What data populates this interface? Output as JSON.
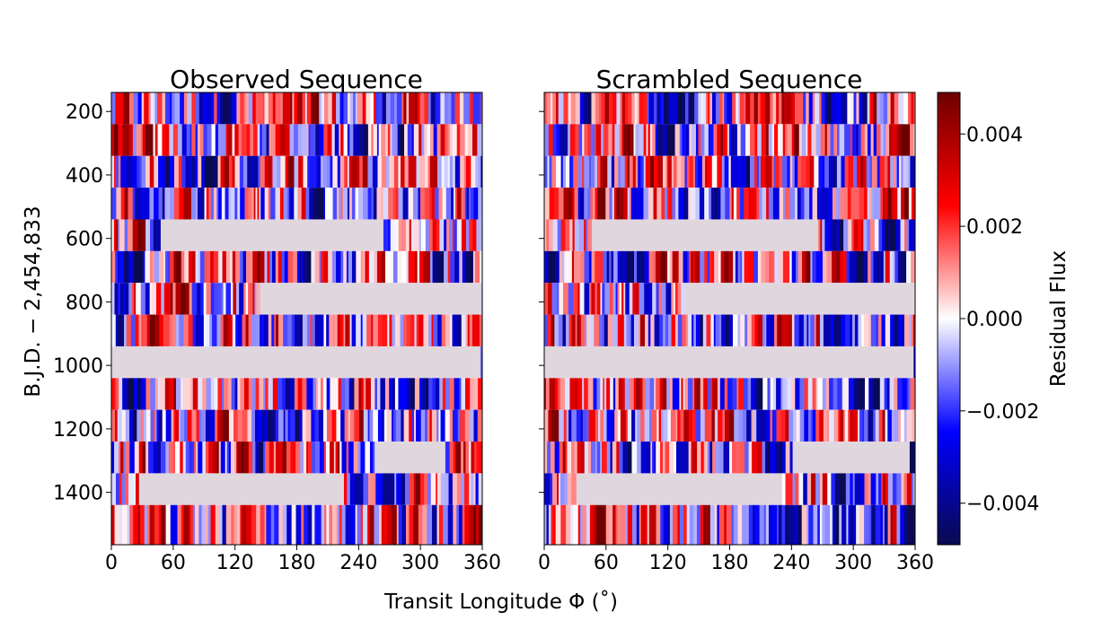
{
  "chart_data": [
    {
      "type": "heatmap",
      "title": "Observed Sequence",
      "xlabel": "Transit Longitude Φ (˚)",
      "ylabel": "B.J.D. − 2,454,833",
      "xlim": [
        0,
        360
      ],
      "ylim": [
        140,
        1565
      ],
      "xticks": [
        "0",
        "60",
        "120",
        "180",
        "240",
        "300",
        "360"
      ],
      "yticks": [
        "200",
        "400",
        "600",
        "800",
        "1000",
        "1200",
        "1400"
      ],
      "rows": [
        {
          "t0": 140,
          "t1": 240,
          "gaps": []
        },
        {
          "t0": 240,
          "t1": 340,
          "gaps": []
        },
        {
          "t0": 340,
          "t1": 440,
          "gaps": []
        },
        {
          "t0": 440,
          "t1": 540,
          "gaps": []
        },
        {
          "t0": 540,
          "t1": 640,
          "gaps": [
            [
              47,
              265
            ]
          ]
        },
        {
          "t0": 640,
          "t1": 740,
          "gaps": []
        },
        {
          "t0": 740,
          "t1": 840,
          "gaps": [
            [
              145,
              360
            ]
          ]
        },
        {
          "t0": 840,
          "t1": 940,
          "gaps": []
        },
        {
          "t0": 940,
          "t1": 1040,
          "gaps": [
            [
              0,
              360
            ]
          ]
        },
        {
          "t0": 1040,
          "t1": 1140,
          "gaps": []
        },
        {
          "t0": 1140,
          "t1": 1240,
          "gaps": []
        },
        {
          "t0": 1240,
          "t1": 1340,
          "gaps": [
            [
              255,
              325
            ]
          ]
        },
        {
          "t0": 1340,
          "t1": 1440,
          "gaps": [
            [
              27,
              225
            ]
          ]
        },
        {
          "t0": 1440,
          "t1": 1565,
          "gaps": []
        }
      ]
    },
    {
      "type": "heatmap",
      "title": "Scrambled Sequence",
      "xlim": [
        0,
        360
      ],
      "ylim": [
        140,
        1565
      ],
      "xticks": [
        "0",
        "60",
        "120",
        "180",
        "240",
        "300",
        "360"
      ],
      "rows": [
        {
          "t0": 140,
          "t1": 240,
          "gaps": []
        },
        {
          "t0": 240,
          "t1": 340,
          "gaps": []
        },
        {
          "t0": 340,
          "t1": 440,
          "gaps": []
        },
        {
          "t0": 440,
          "t1": 540,
          "gaps": []
        },
        {
          "t0": 540,
          "t1": 640,
          "gaps": [
            [
              47,
              265
            ]
          ]
        },
        {
          "t0": 640,
          "t1": 740,
          "gaps": []
        },
        {
          "t0": 740,
          "t1": 840,
          "gaps": [
            [
              140,
              360
            ]
          ]
        },
        {
          "t0": 840,
          "t1": 940,
          "gaps": []
        },
        {
          "t0": 940,
          "t1": 1040,
          "gaps": [
            [
              0,
              360
            ]
          ]
        },
        {
          "t0": 1040,
          "t1": 1140,
          "gaps": []
        },
        {
          "t0": 1140,
          "t1": 1240,
          "gaps": []
        },
        {
          "t0": 1240,
          "t1": 1340,
          "gaps": [
            [
              240,
              355
            ]
          ]
        },
        {
          "t0": 1340,
          "t1": 1440,
          "gaps": [
            [
              30,
              230
            ]
          ]
        },
        {
          "t0": 1440,
          "t1": 1565,
          "gaps": []
        }
      ]
    }
  ],
  "colorbar": {
    "label": "Residual Flux",
    "range": [
      -0.0049,
      0.0049
    ],
    "ticks": [
      0.004,
      0.002,
      0.0,
      -0.002,
      -0.004
    ],
    "tick_labels": [
      "0.004",
      "0.002",
      "0.000",
      "−0.002",
      "−0.004"
    ],
    "colormap": [
      "#0a0a4f",
      "#0000ff",
      "#ffffff",
      "#ff0000",
      "#6e0000"
    ]
  },
  "gap_color": "#e0d6de",
  "figure_xlabel": "Transit Longitude Φ (˚)",
  "figure_ylabel": "B.J.D. − 2,454,833"
}
